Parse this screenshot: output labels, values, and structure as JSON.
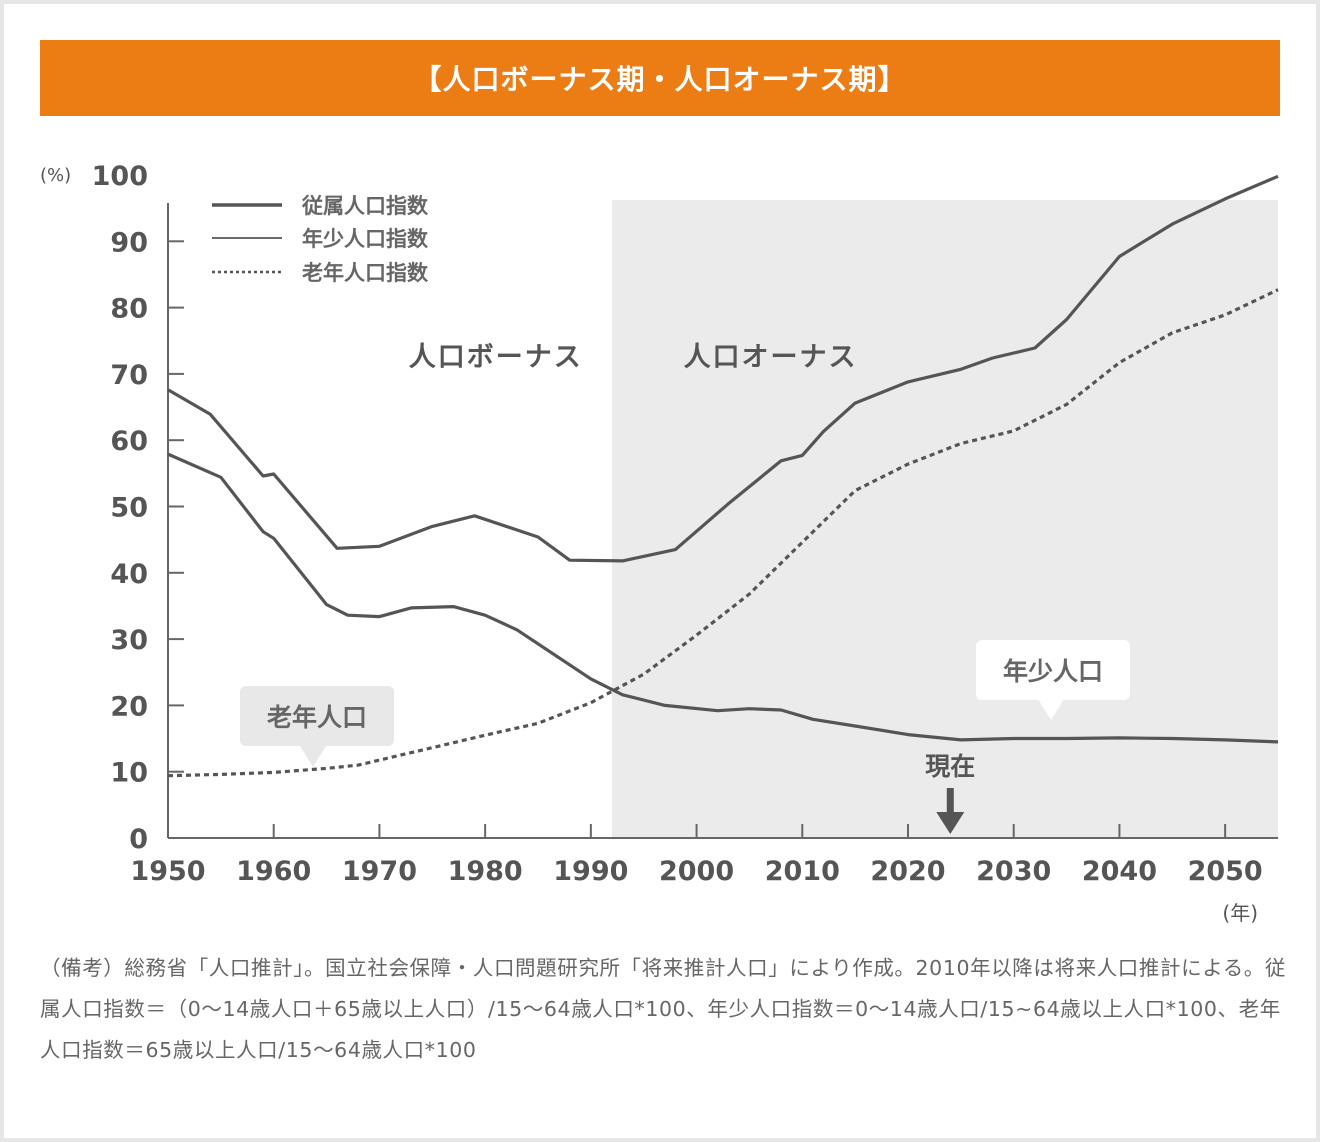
{
  "title": "【人口ボーナス期・人口オーナス期】",
  "chart_data": {
    "type": "line",
    "ylabel": "(%)",
    "xunit": "(年)",
    "xlim": [
      1950,
      2055
    ],
    "ylim": [
      0,
      100
    ],
    "x_ticks": [
      "1950",
      "1960",
      "1970",
      "1980",
      "1990",
      "2000",
      "2010",
      "2020",
      "2030",
      "2040",
      "2050"
    ],
    "y_ticks": [
      "0",
      "10",
      "20",
      "30",
      "40",
      "50",
      "60",
      "70",
      "80",
      "90",
      "100"
    ],
    "legend": {
      "placement": "top-left",
      "entries": [
        "従属人口指数",
        "年少人口指数",
        "老年人口指数"
      ]
    },
    "regions": [
      {
        "label": "人口ボーナス",
        "from": 1950,
        "to": 1992
      },
      {
        "label": "人口オーナス",
        "from": 1992,
        "to": 2055,
        "shaded": true
      }
    ],
    "annotations": {
      "elderly_label": "老年人口",
      "youth_label": "年少人口",
      "now_label": "現在",
      "now_year": 2024
    },
    "series": [
      {
        "name": "従属人口指数",
        "style": "solid-thick",
        "x": [
          1950,
          1954,
          1959,
          1960,
          1966,
          1970,
          1975,
          1979,
          1985,
          1988,
          1993,
          1998,
          2003,
          2008,
          2010,
          2012,
          2015,
          2020,
          2025,
          2028,
          2032,
          2035,
          2040,
          2045,
          2050,
          2055
        ],
        "y": [
          67.6,
          63.9,
          54.6,
          54.9,
          43.7,
          44.0,
          47.0,
          48.6,
          45.4,
          41.9,
          41.8,
          43.5,
          50.4,
          56.9,
          57.7,
          61.3,
          65.6,
          68.8,
          70.7,
          72.4,
          73.9,
          78.2,
          87.7,
          92.6,
          96.4,
          99.8
        ]
      },
      {
        "name": "年少人口指数",
        "style": "solid",
        "x": [
          1950,
          1955,
          1959,
          1960,
          1965,
          1967,
          1970,
          1973,
          1977,
          1980,
          1983,
          1990,
          1993,
          1997,
          2002,
          2005,
          2008,
          2011,
          2015,
          2020,
          2025,
          2030,
          2035,
          2040,
          2045,
          2050,
          2055
        ],
        "y": [
          57.9,
          54.4,
          46.2,
          45.2,
          35.2,
          33.6,
          33.4,
          34.7,
          34.9,
          33.6,
          31.4,
          24.0,
          21.6,
          20.0,
          19.2,
          19.5,
          19.3,
          17.9,
          16.9,
          15.6,
          14.8,
          15.0,
          15.0,
          15.1,
          15.0,
          14.8,
          14.5
        ]
      },
      {
        "name": "老年人口指数",
        "style": "dotted",
        "x": [
          1950,
          1955,
          1960,
          1965,
          1968,
          1972,
          1976,
          1980,
          1985,
          1990,
          1995,
          2000,
          2005,
          2010,
          2015,
          2020,
          2025,
          2030,
          2035,
          2040,
          2045,
          2050,
          2055
        ],
        "y": [
          9.4,
          9.6,
          9.9,
          10.5,
          11.0,
          12.5,
          14.0,
          15.5,
          17.3,
          20.4,
          24.7,
          30.6,
          36.8,
          44.6,
          52.4,
          56.4,
          59.5,
          61.4,
          65.4,
          71.7,
          76.2,
          78.9,
          82.7
        ]
      }
    ]
  },
  "note": "（備考）総務省「人口推計」。国立社会保障・人口問題研究所「将来推計人口」により作成。2010年以降は将来人口推計による。従属人口指数＝（0〜14歳人口＋65歳以上人口）/15〜64歳人口*100、年少人口指数＝0〜14歳人口/15~64歳以上人口*100、老年人口指数＝65歳以上人口/15〜64歳人口*100"
}
